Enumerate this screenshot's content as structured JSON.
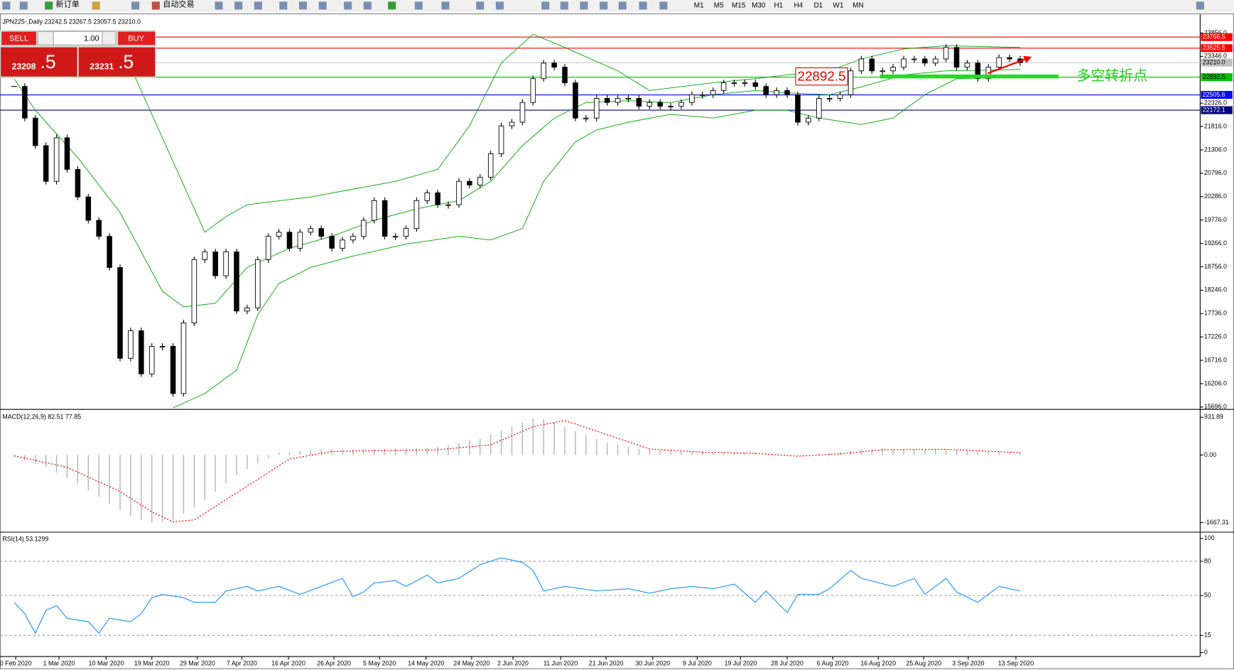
{
  "toolbar": {
    "buttons": [
      "新订单",
      "自动交易"
    ],
    "timeframes": [
      "M1",
      "M5",
      "M15",
      "M30",
      "H1",
      "H4",
      "D1",
      "W1",
      "MN"
    ]
  },
  "trade_panel": {
    "sell": "SELL",
    "buy": "BUY",
    "lot": "1.00",
    "sell_price": [
      "23208",
      ".5"
    ],
    "buy_price": [
      "23231",
      ".5"
    ]
  },
  "annotations": {
    "price_box": "22892.5",
    "note": "多空转折点"
  },
  "chart_data": [
    {
      "type": "candlestick",
      "title": "JPN225-,Daily  23242.5 23267.5 23057.5 23210.0",
      "close": [
        22690,
        22000,
        21400,
        20620,
        21570,
        20880,
        20280,
        19770,
        19420,
        18740,
        16760,
        17360,
        16420,
        17020,
        17020,
        15990,
        17530,
        18910,
        19080,
        18560,
        19080,
        17790,
        17860,
        18910,
        19420,
        19510,
        19160,
        19510,
        19590,
        19420,
        19160,
        19340,
        19420,
        19770,
        20200,
        19420,
        19420,
        19590,
        20200,
        20370,
        20110,
        20110,
        20620,
        20540,
        20710,
        21220,
        21830,
        21910,
        22340,
        22860,
        23200,
        23110,
        22770,
        22000,
        22000,
        22430,
        22340,
        22430,
        22430,
        22260,
        22340,
        22260,
        22260,
        22340,
        22510,
        22510,
        22600,
        22770,
        22770,
        22770,
        22690,
        22510,
        22600,
        22510,
        21910,
        22000,
        22430,
        22430,
        22510,
        23030,
        23290,
        23030,
        23030,
        23110,
        23290,
        23290,
        23200,
        23290,
        23540,
        23110,
        23200,
        22860,
        23110,
        23320,
        23290,
        23210
      ],
      "up_color": "#ffffff",
      "down_color": "#000000",
      "xlim": [
        -1.34,
        112
      ],
      "ylim": [
        15662,
        24093
      ],
      "yticks": [
        {
          "value": 23856,
          "label": "23856.0"
        },
        {
          "value": 23346,
          "label": "23346.0"
        },
        {
          "value": 22326,
          "label": "22326.0"
        },
        {
          "value": 21816,
          "label": "21816.0"
        },
        {
          "value": 21306,
          "label": "21306.0"
        },
        {
          "value": 20796,
          "label": "20796.0"
        },
        {
          "value": 20286,
          "label": "20286.0"
        },
        {
          "value": 19776,
          "label": "19776.0"
        },
        {
          "value": 19266,
          "label": "19266.0"
        },
        {
          "value": 18756,
          "label": "18756.0"
        },
        {
          "value": 18246,
          "label": "18246.0"
        },
        {
          "value": 17736,
          "label": "17736.0"
        },
        {
          "value": 17226,
          "label": "17226.0"
        },
        {
          "value": 16716,
          "label": "16716.0"
        },
        {
          "value": 16206,
          "label": "16206.0"
        },
        {
          "value": 15696,
          "label": "15696.0"
        }
      ],
      "hlines": [
        {
          "value": 23766.5,
          "color": "#ff0000",
          "text_color": "#ffffff"
        },
        {
          "value": 23525.5,
          "color": "#ff0000",
          "text_color": "#ffffff"
        },
        {
          "value": 23210,
          "label": "23210.0",
          "color": "#c0c0c0",
          "text_color": "#000000"
        },
        {
          "value": 22892.5,
          "color": "#00c000",
          "text_color": "#000000"
        },
        {
          "value": 22505.6,
          "color": "#0000ff",
          "text_color": "#ffffff"
        },
        {
          "value": 22172.1,
          "color": "#000080",
          "text_color": "#ffffff"
        }
      ],
      "bands": {
        "color": "#00a000",
        "lines": [
          {
            "x": [
              11,
              18,
              20,
              22,
              28,
              36,
              40,
              43,
              46,
              49,
              52,
              57,
              60,
              66,
              70,
              73,
              77,
              80,
              84,
              88,
              95
            ],
            "values": [
              23110,
              19510,
              19850,
              20110,
              20280,
              20620,
              20880,
              21830,
              23200,
              23830,
              23540,
              23030,
              22600,
              22770,
              22860,
              22940,
              23030,
              23290,
              23510,
              23580,
              23540
            ]
          },
          {
            "x": [
              0,
              2,
              6,
              10,
              14,
              16,
              19,
              22,
              26,
              30,
              34,
              38,
              42,
              45,
              48,
              51,
              54,
              58,
              62,
              66,
              70,
              73,
              77,
              80,
              84,
              88,
              95
            ],
            "values": [
              22860,
              22170,
              21140,
              19940,
              18220,
              17880,
              17960,
              18740,
              19160,
              19420,
              19770,
              20020,
              20200,
              20620,
              21400,
              22000,
              22340,
              22380,
              22340,
              22510,
              22600,
              22550,
              22510,
              22680,
              22940,
              23030,
              23060
            ]
          },
          {
            "x": [
              15,
              18,
              21,
              23,
              25,
              28,
              32,
              37,
              42,
              45,
              48,
              50,
              53,
              55,
              58,
              62,
              66,
              70,
              73,
              76,
              80,
              83,
              86,
              89,
              95
            ],
            "values": [
              15680,
              15990,
              16500,
              17710,
              18390,
              18740,
              18990,
              19250,
              19420,
              19340,
              19590,
              20620,
              21480,
              21740,
              21910,
              22080,
              22000,
              22170,
              22170,
              22000,
              21860,
              22000,
              22510,
              22860,
              22890
            ]
          }
        ]
      }
    },
    {
      "type": "bar",
      "title": "MACD(12,26,9) 82.51 77.85",
      "color": "#b0b0b0",
      "values": [
        -50,
        -130,
        -220,
        -300,
        -430,
        -570,
        -700,
        -870,
        -1030,
        -1200,
        -1350,
        -1500,
        -1600,
        -1667,
        -1640,
        -1600,
        -1450,
        -1300,
        -1100,
        -900,
        -700,
        -500,
        -350,
        -200,
        -70,
        60,
        80,
        100,
        120,
        130,
        140,
        140,
        150,
        150,
        150,
        160,
        160,
        160,
        170,
        180,
        200,
        250,
        300,
        350,
        400,
        500,
        600,
        700,
        800,
        900,
        880,
        800,
        700,
        600,
        500,
        400,
        300,
        250,
        200,
        150,
        120,
        110,
        100,
        90,
        80,
        80,
        70,
        70,
        60,
        60,
        60,
        40,
        20,
        0,
        -10,
        0,
        30,
        60,
        90,
        120,
        150,
        150,
        150,
        140,
        140,
        140,
        130,
        130,
        130,
        120,
        110,
        100,
        100,
        90,
        80,
        80
      ],
      "signal": {
        "color": "#ff0000",
        "x": [
          0,
          5,
          10,
          13,
          15,
          17,
          20,
          23,
          26,
          30,
          40,
          45,
          49,
          52,
          56,
          60,
          65,
          70,
          74,
          78,
          82,
          88,
          95
        ],
        "values": [
          -20,
          -300,
          -900,
          -1400,
          -1650,
          -1600,
          -1100,
          -600,
          -100,
          90,
          130,
          250,
          700,
          850,
          500,
          150,
          70,
          40,
          -30,
          30,
          130,
          140,
          60
        ]
      },
      "xlim": [
        -1.34,
        112
      ],
      "ylim": [
        -1883,
        1087
      ],
      "yticks": [
        931.89,
        {
          "value": 0,
          "label": "0.00"
        },
        -1667.31
      ]
    },
    {
      "type": "line",
      "title": "RSI(14) 53.1299",
      "color": "#1e90ff",
      "grid": "dashed",
      "x": [
        0,
        1,
        2,
        3,
        4,
        5,
        7,
        8,
        9,
        11,
        12,
        13,
        14,
        16,
        17,
        19,
        20,
        22,
        23,
        25,
        27,
        29,
        31,
        32,
        33,
        34,
        36,
        37,
        39,
        40,
        42,
        44,
        46,
        48,
        49,
        50,
        52,
        55,
        58,
        60,
        62,
        64,
        66,
        68,
        70,
        71,
        73,
        74,
        76,
        77,
        79,
        80,
        83,
        85,
        86,
        88,
        89,
        91,
        93,
        95
      ],
      "values": [
        44,
        34,
        17,
        37,
        41,
        30,
        27,
        17,
        30,
        27,
        34,
        48,
        51,
        48,
        44,
        44,
        54,
        58,
        54,
        58,
        51,
        58,
        65,
        49,
        53,
        61,
        63,
        58,
        68,
        61,
        65,
        77,
        83,
        79,
        72,
        54,
        58,
        54,
        56,
        52,
        56,
        58,
        56,
        60,
        44,
        54,
        35,
        51,
        51,
        56,
        72,
        65,
        58,
        65,
        51,
        65,
        53,
        44,
        58,
        54
      ],
      "xlim": [
        -1.34,
        112
      ],
      "ylim": [
        -2.8,
        104.8
      ],
      "yticks": [
        100,
        80,
        50,
        15,
        0
      ],
      "xticks": [
        {
          "value": 0.15,
          "label": "0 Feb 2020"
        },
        {
          "value": 4.23,
          "label": "1 Mar 2020"
        },
        {
          "value": 8.69,
          "label": "10 Mar 2020"
        },
        {
          "value": 13.0,
          "label": "19 Mar 2020"
        },
        {
          "value": 17.3,
          "label": "29 Mar 2020"
        },
        {
          "value": 21.5,
          "label": "7 Apr 2020"
        },
        {
          "value": 25.9,
          "label": "16 Apr 2020"
        },
        {
          "value": 30.2,
          "label": "26 Apr 2020"
        },
        {
          "value": 34.5,
          "label": "5 May 2020"
        },
        {
          "value": 38.9,
          "label": "14 May 2020"
        },
        {
          "value": 43.2,
          "label": "24 May 2020"
        },
        {
          "value": 47.1,
          "label": "2 Jun 2020"
        },
        {
          "value": 51.6,
          "label": "11 Jun 2020"
        },
        {
          "value": 55.9,
          "label": "21 Jun 2020"
        },
        {
          "value": 60.3,
          "label": "30 Jun 2020"
        },
        {
          "value": 64.5,
          "label": "9 Jul 2020"
        },
        {
          "value": 68.6,
          "label": "19 Jul 2020"
        },
        {
          "value": 73.0,
          "label": "28 Jul 2020"
        },
        {
          "value": 77.3,
          "label": "6 Aug 2020"
        },
        {
          "value": 81.6,
          "label": "16 Aug 2020"
        },
        {
          "value": 85.9,
          "label": "25 Aug 2020"
        },
        {
          "value": 90.1,
          "label": "3 Sep 2020"
        },
        {
          "value": 94.6,
          "label": "13 Sep 2020"
        }
      ]
    }
  ]
}
